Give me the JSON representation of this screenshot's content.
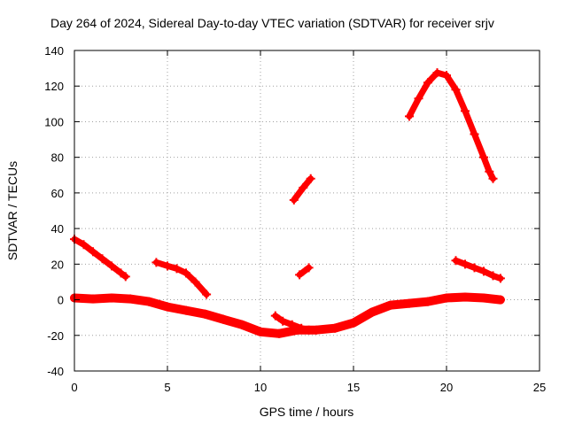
{
  "chart_data": {
    "type": "scatter",
    "title": "Day 264 of 2024, Sidereal Day-to-day VTEC variation (SDTVAR) for receiver srjv",
    "xlabel": "GPS time / hours",
    "ylabel": "SDTVAR / TECUs",
    "xlim": [
      0,
      25
    ],
    "ylim": [
      -40,
      140
    ],
    "xticks": [
      0,
      5,
      10,
      15,
      20,
      25
    ],
    "yticks": [
      -40,
      -20,
      0,
      20,
      40,
      60,
      80,
      100,
      120,
      140
    ],
    "grid": true,
    "marker_color": "#ff0000",
    "series": [
      {
        "name": "near-zero band",
        "points": [
          [
            0,
            1
          ],
          [
            1,
            0.5
          ],
          [
            2,
            1
          ],
          [
            3,
            0.5
          ],
          [
            4,
            -1
          ],
          [
            5,
            -4
          ],
          [
            6,
            -6
          ],
          [
            7,
            -8
          ],
          [
            8,
            -11
          ],
          [
            9,
            -14
          ],
          [
            10,
            -18
          ],
          [
            11,
            -19
          ],
          [
            12,
            -17
          ],
          [
            13,
            -17
          ],
          [
            14,
            -16
          ],
          [
            15,
            -13
          ],
          [
            16,
            -7
          ],
          [
            17,
            -3
          ],
          [
            18,
            -2
          ],
          [
            19,
            -1
          ],
          [
            20,
            1
          ],
          [
            21,
            1.5
          ],
          [
            22,
            1
          ],
          [
            22.9,
            0
          ]
        ]
      },
      {
        "name": "segment 1",
        "points": [
          [
            0,
            34
          ],
          [
            0.5,
            31
          ],
          [
            1,
            27
          ],
          [
            1.5,
            23
          ],
          [
            2,
            19
          ],
          [
            2.5,
            15
          ],
          [
            2.75,
            13
          ]
        ]
      },
      {
        "name": "segment 2",
        "points": [
          [
            4.4,
            21
          ],
          [
            5,
            19
          ],
          [
            5.5,
            17.5
          ],
          [
            6,
            15
          ],
          [
            6.5,
            10
          ],
          [
            7.1,
            3
          ]
        ]
      },
      {
        "name": "segment 3",
        "points": [
          [
            10.8,
            -9
          ],
          [
            11.2,
            -12
          ],
          [
            11.7,
            -14
          ],
          [
            12.2,
            -16
          ],
          [
            12.6,
            -17
          ]
        ]
      },
      {
        "name": "segment 4",
        "points": [
          [
            12.1,
            14
          ],
          [
            12.6,
            18
          ]
        ]
      },
      {
        "name": "segment 5",
        "points": [
          [
            11.8,
            56
          ],
          [
            12.3,
            63
          ],
          [
            12.7,
            68
          ]
        ]
      },
      {
        "name": "segment 6",
        "points": [
          [
            18,
            103
          ],
          [
            18.5,
            113
          ],
          [
            19,
            122
          ],
          [
            19.5,
            127.5
          ],
          [
            20,
            126
          ],
          [
            20.5,
            118
          ],
          [
            21,
            106
          ],
          [
            21.5,
            93
          ],
          [
            22,
            80
          ],
          [
            22.3,
            72
          ],
          [
            22.5,
            68
          ]
        ]
      },
      {
        "name": "segment 7",
        "points": [
          [
            20.5,
            22
          ],
          [
            21,
            20
          ],
          [
            21.5,
            18
          ],
          [
            22,
            16
          ],
          [
            22.5,
            13.5
          ],
          [
            22.9,
            12
          ]
        ]
      }
    ]
  }
}
